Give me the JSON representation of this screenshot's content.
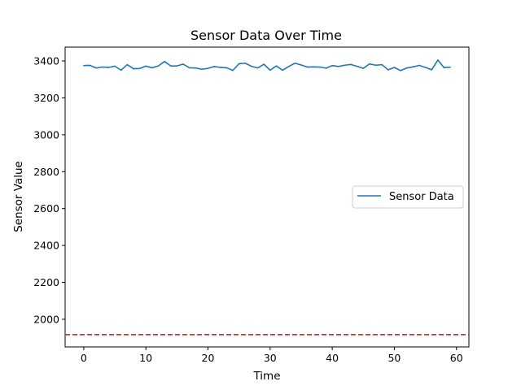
{
  "chart_data": {
    "type": "line",
    "title": "Sensor Data Over Time",
    "xlabel": "Time",
    "ylabel": "Sensor Value",
    "xlim": [
      -3,
      62
    ],
    "ylim": [
      1850,
      3475
    ],
    "xticks": [
      0,
      10,
      20,
      30,
      40,
      50,
      60
    ],
    "yticks": [
      2000,
      2200,
      2400,
      2600,
      2800,
      3000,
      3200,
      3400
    ],
    "grid": false,
    "legend_position": "center-right",
    "series": [
      {
        "name": "Sensor Data",
        "color": "#1f77b4",
        "x": [
          0,
          1,
          2,
          3,
          4,
          5,
          6,
          7,
          8,
          9,
          10,
          11,
          12,
          13,
          14,
          15,
          16,
          17,
          18,
          19,
          20,
          21,
          22,
          23,
          24,
          25,
          26,
          27,
          28,
          29,
          30,
          31,
          32,
          33,
          34,
          35,
          36,
          37,
          38,
          39,
          40,
          41,
          42,
          43,
          44,
          45,
          46,
          47,
          48,
          49,
          50,
          51,
          52,
          53,
          54,
          55,
          56,
          57,
          58,
          59
        ],
        "values": [
          3375,
          3376,
          3362,
          3367,
          3365,
          3372,
          3350,
          3380,
          3358,
          3359,
          3372,
          3363,
          3373,
          3397,
          3373,
          3373,
          3383,
          3363,
          3362,
          3355,
          3360,
          3370,
          3365,
          3363,
          3349,
          3385,
          3388,
          3371,
          3362,
          3382,
          3350,
          3373,
          3350,
          3370,
          3388,
          3378,
          3367,
          3368,
          3367,
          3361,
          3375,
          3370,
          3377,
          3381,
          3371,
          3360,
          3384,
          3377,
          3380,
          3352,
          3365,
          3348,
          3362,
          3368,
          3376,
          3365,
          3352,
          3405,
          3364,
          3366
        ]
      }
    ],
    "reference_line": {
      "orientation": "horizontal",
      "value": 1917,
      "color": "#d62728",
      "style": "dashed"
    }
  }
}
